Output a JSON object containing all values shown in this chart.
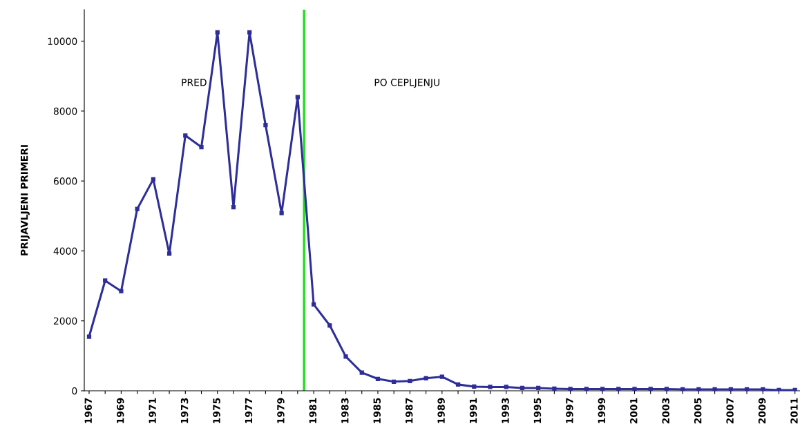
{
  "chart_data": {
    "type": "line",
    "ylabel": "PRIJAVLJENI PRIMERI",
    "x": [
      1967,
      1968,
      1969,
      1970,
      1971,
      1972,
      1973,
      1974,
      1975,
      1976,
      1977,
      1978,
      1979,
      1980,
      1981,
      1982,
      1983,
      1984,
      1985,
      1986,
      1987,
      1988,
      1989,
      1990,
      1991,
      1992,
      1993,
      1994,
      1995,
      1996,
      1997,
      1998,
      1999,
      2000,
      2001,
      2002,
      2003,
      2004,
      2005,
      2006,
      2007,
      2008,
      2009,
      2010,
      2011
    ],
    "series": [
      {
        "color": "#2e2e9a",
        "values": [
          1550,
          3150,
          2850,
          5200,
          6050,
          3920,
          7300,
          6970,
          10250,
          5250,
          10250,
          7600,
          5080,
          8400,
          2470,
          1870,
          980,
          520,
          340,
          260,
          280,
          360,
          400,
          180,
          120,
          110,
          110,
          80,
          80,
          60,
          50,
          50,
          50,
          50,
          50,
          50,
          50,
          40,
          40,
          40,
          40,
          40,
          40,
          20,
          20
        ]
      }
    ],
    "marker": "square",
    "line_style": "solid",
    "grid": false,
    "legend": false,
    "xlim": [
      1966.7,
      2011.4
    ],
    "ylim": [
      0,
      10900
    ],
    "xticks": [
      1967,
      {
        "value": 1968,
        "label": null
      },
      1969,
      {
        "value": 1970,
        "label": null
      },
      1971,
      {
        "value": 1972,
        "label": null
      },
      1973,
      {
        "value": 1974,
        "label": null
      },
      1975,
      {
        "value": 1976,
        "label": null
      },
      1977,
      {
        "value": 1978,
        "label": null
      },
      1979,
      {
        "value": 1980,
        "label": null
      },
      1981,
      {
        "value": 1982,
        "label": null
      },
      1983,
      {
        "value": 1984,
        "label": null
      },
      1985,
      {
        "value": 1986,
        "label": null
      },
      1987,
      {
        "value": 1988,
        "label": null
      },
      1989,
      {
        "value": 1990,
        "label": null
      },
      1991,
      {
        "value": 1992,
        "label": null
      },
      1993,
      {
        "value": 1994,
        "label": null
      },
      1995,
      {
        "value": 1996,
        "label": null
      },
      1997,
      {
        "value": 1998,
        "label": null
      },
      1999,
      {
        "value": 2000,
        "label": null
      },
      2001,
      {
        "value": 2002,
        "label": null
      },
      2003,
      {
        "value": 2004,
        "label": null
      },
      2005,
      {
        "value": 2006,
        "label": null
      },
      2007,
      {
        "value": 2008,
        "label": null
      },
      2009,
      {
        "value": 2010,
        "label": null
      },
      2011
    ],
    "yticks": [
      0,
      2000,
      4000,
      6000,
      8000,
      10000
    ],
    "ref_lines": [
      {
        "axis": "x",
        "value": 1980.4,
        "color": "#22dd22",
        "line_style": "solid"
      }
    ],
    "annotations": [
      "PRED",
      "PO CEPLJENJU"
    ]
  }
}
